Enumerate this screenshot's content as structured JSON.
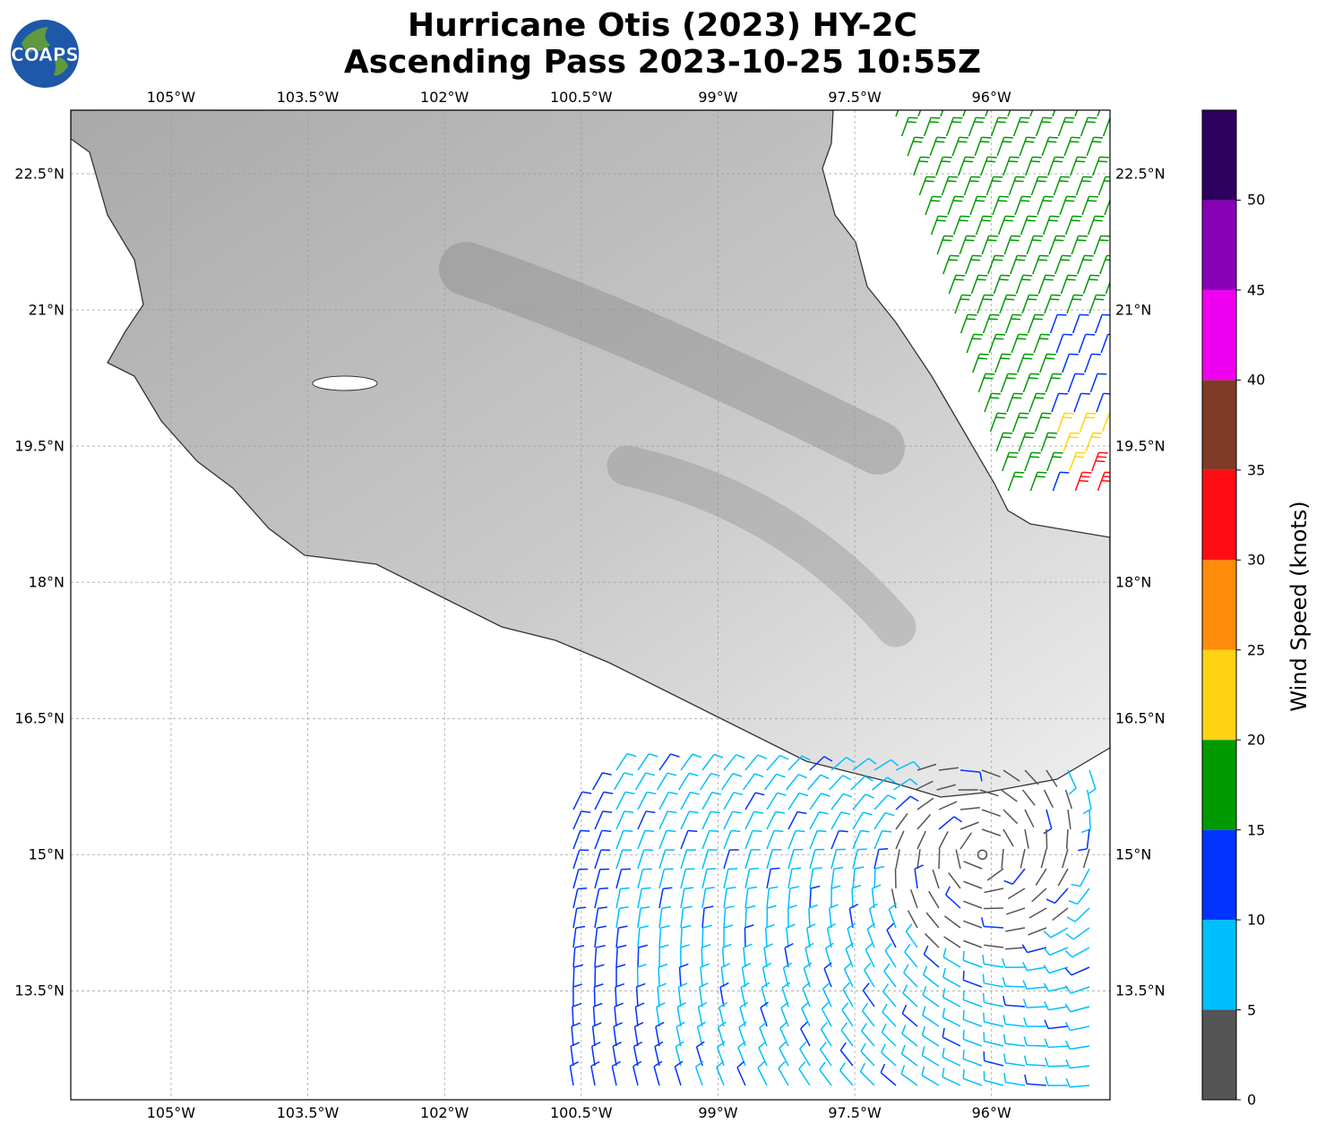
{
  "header": {
    "title_line1": "Hurricane Otis (2023) HY-2C",
    "title_line2": "Ascending Pass 2023-10-25 10:55Z",
    "logo_text": "COAPS"
  },
  "map": {
    "lon_range": [
      -106.1,
      -94.7
    ],
    "lat_range": [
      12.3,
      23.2
    ],
    "lon_ticks": [
      "105°W",
      "103.5°W",
      "102°W",
      "100.5°W",
      "99°W",
      "97.5°W",
      "96°W"
    ],
    "lon_tick_values": [
      -105,
      -103.5,
      -102,
      -100.5,
      -99,
      -97.5,
      -96
    ],
    "lat_ticks": [
      "22.5°N",
      "21°N",
      "19.5°N",
      "18°N",
      "16.5°N",
      "15°N",
      "13.5°N"
    ],
    "lat_tick_values": [
      22.5,
      21,
      19.5,
      18,
      16.5,
      15,
      13.5
    ],
    "storm_center": [
      -96.1,
      15.0
    ],
    "land_color": "#bdbdbd",
    "coastline_color": "#333333"
  },
  "colorbar": {
    "label": "Wind Speed (knots)",
    "ticks": [
      "0",
      "5",
      "10",
      "15",
      "20",
      "25",
      "30",
      "35",
      "40",
      "45",
      "50"
    ],
    "bins": [
      {
        "min": 0,
        "max": 5,
        "color": "#555555"
      },
      {
        "min": 5,
        "max": 10,
        "color": "#00bfff"
      },
      {
        "min": 10,
        "max": 15,
        "color": "#0033ff"
      },
      {
        "min": 15,
        "max": 20,
        "color": "#009900"
      },
      {
        "min": 20,
        "max": 25,
        "color": "#ffd314"
      },
      {
        "min": 25,
        "max": 30,
        "color": "#ff8c0a"
      },
      {
        "min": 30,
        "max": 35,
        "color": "#ff0d12"
      },
      {
        "min": 35,
        "max": 40,
        "color": "#7f3b26"
      },
      {
        "min": 40,
        "max": 45,
        "color": "#f000f0"
      },
      {
        "min": 45,
        "max": 50,
        "color": "#8800b6"
      },
      {
        "min": 50,
        "max": 55,
        "color": "#2e0060"
      }
    ]
  }
}
